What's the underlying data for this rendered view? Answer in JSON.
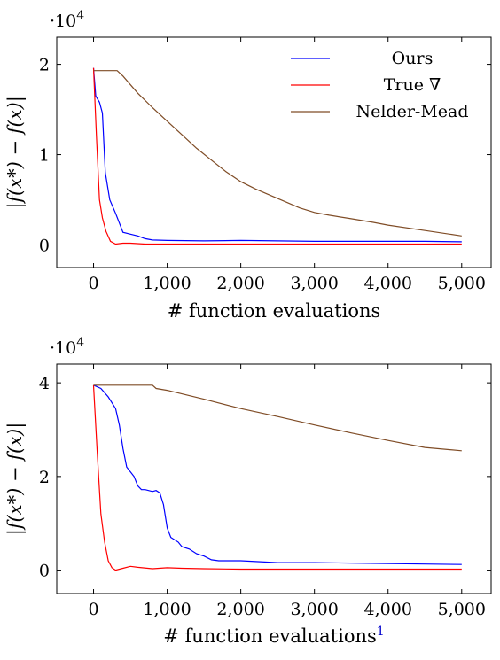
{
  "chart_data": [
    {
      "type": "line",
      "title": "",
      "xlabel": "# function evaluations",
      "ylabel": "|f(x*) − f(x)|",
      "y_multiplier_label": "·10",
      "y_multiplier_exp": "4",
      "xlim": [
        -500,
        5400
      ],
      "ylim": [
        -0.25,
        2.3
      ],
      "x_ticks": [
        0,
        1000,
        2000,
        3000,
        4000,
        5000
      ],
      "x_tick_labels": [
        "0",
        "1,000",
        "2,000",
        "3,000",
        "4,000",
        "5,000"
      ],
      "y_ticks": [
        0,
        1,
        2
      ],
      "y_tick_labels": [
        "0",
        "1",
        "2"
      ],
      "grid": false,
      "legend": "top-right",
      "series": [
        {
          "name": "Ours",
          "color": "#0000ff",
          "points": [
            [
              0,
              1.96
            ],
            [
              30,
              1.65
            ],
            [
              80,
              1.58
            ],
            [
              120,
              1.46
            ],
            [
              160,
              0.8
            ],
            [
              220,
              0.5
            ],
            [
              300,
              0.35
            ],
            [
              400,
              0.14
            ],
            [
              500,
              0.12
            ],
            [
              600,
              0.1
            ],
            [
              700,
              0.07
            ],
            [
              800,
              0.055
            ],
            [
              1000,
              0.05
            ],
            [
              1500,
              0.045
            ],
            [
              2000,
              0.05
            ],
            [
              2500,
              0.045
            ],
            [
              3000,
              0.04
            ],
            [
              3500,
              0.04
            ],
            [
              4000,
              0.04
            ],
            [
              4500,
              0.04
            ],
            [
              5000,
              0.035
            ]
          ]
        },
        {
          "name": "True ∇",
          "color": "#ff0000",
          "points": [
            [
              0,
              1.96
            ],
            [
              40,
              1.2
            ],
            [
              80,
              0.5
            ],
            [
              120,
              0.3
            ],
            [
              170,
              0.15
            ],
            [
              230,
              0.04
            ],
            [
              300,
              0.01
            ],
            [
              400,
              0.02
            ],
            [
              500,
              0.02
            ],
            [
              700,
              0.01
            ],
            [
              1000,
              0.01
            ],
            [
              2000,
              0.01
            ],
            [
              3000,
              0.01
            ],
            [
              4000,
              0.01
            ],
            [
              5000,
              0.01
            ]
          ]
        },
        {
          "name": "Nelder-Mead",
          "color": "#7f4c26",
          "points": [
            [
              0,
              1.93
            ],
            [
              250,
              1.93
            ],
            [
              320,
              1.93
            ],
            [
              400,
              1.87
            ],
            [
              600,
              1.68
            ],
            [
              800,
              1.52
            ],
            [
              1000,
              1.37
            ],
            [
              1200,
              1.22
            ],
            [
              1400,
              1.07
            ],
            [
              1600,
              0.94
            ],
            [
              1800,
              0.81
            ],
            [
              2000,
              0.7
            ],
            [
              2200,
              0.62
            ],
            [
              2400,
              0.55
            ],
            [
              2600,
              0.48
            ],
            [
              2800,
              0.41
            ],
            [
              3000,
              0.36
            ],
            [
              3200,
              0.33
            ],
            [
              3500,
              0.29
            ],
            [
              3800,
              0.25
            ],
            [
              4000,
              0.22
            ],
            [
              4500,
              0.16
            ],
            [
              5000,
              0.1
            ]
          ]
        }
      ]
    },
    {
      "type": "line",
      "title": "",
      "xlabel": "# function evaluations",
      "xlabel_superscript": "1",
      "ylabel": "|f(x*) − f(x)|",
      "y_multiplier_label": "·10",
      "y_multiplier_exp": "4",
      "xlim": [
        -500,
        5400
      ],
      "ylim": [
        -0.5,
        4.4
      ],
      "x_ticks": [
        0,
        1000,
        2000,
        3000,
        4000,
        5000
      ],
      "x_tick_labels": [
        "0",
        "1,000",
        "2,000",
        "3,000",
        "4,000",
        "5,000"
      ],
      "y_ticks": [
        0,
        2,
        4
      ],
      "y_tick_labels": [
        "0",
        "2",
        "4"
      ],
      "grid": false,
      "legend": "none",
      "series": [
        {
          "name": "",
          "color": "#0000ff",
          "points": [
            [
              0,
              3.95
            ],
            [
              100,
              3.88
            ],
            [
              200,
              3.7
            ],
            [
              300,
              3.45
            ],
            [
              350,
              3.1
            ],
            [
              400,
              2.6
            ],
            [
              450,
              2.2
            ],
            [
              500,
              2.1
            ],
            [
              550,
              2.0
            ],
            [
              600,
              1.8
            ],
            [
              650,
              1.72
            ],
            [
              700,
              1.72
            ],
            [
              800,
              1.68
            ],
            [
              850,
              1.7
            ],
            [
              900,
              1.65
            ],
            [
              950,
              1.4
            ],
            [
              1000,
              0.9
            ],
            [
              1050,
              0.7
            ],
            [
              1150,
              0.6
            ],
            [
              1200,
              0.5
            ],
            [
              1300,
              0.45
            ],
            [
              1400,
              0.35
            ],
            [
              1500,
              0.3
            ],
            [
              1600,
              0.22
            ],
            [
              1700,
              0.2
            ],
            [
              1800,
              0.2
            ],
            [
              2000,
              0.2
            ],
            [
              2500,
              0.16
            ],
            [
              3000,
              0.16
            ],
            [
              3500,
              0.15
            ],
            [
              4000,
              0.14
            ],
            [
              4500,
              0.13
            ],
            [
              5000,
              0.12
            ]
          ]
        },
        {
          "name": "",
          "color": "#ff0000",
          "points": [
            [
              0,
              3.95
            ],
            [
              50,
              2.5
            ],
            [
              100,
              1.2
            ],
            [
              150,
              0.6
            ],
            [
              200,
              0.2
            ],
            [
              250,
              0.05
            ],
            [
              300,
              0.0
            ],
            [
              400,
              0.04
            ],
            [
              500,
              0.08
            ],
            [
              600,
              0.06
            ],
            [
              800,
              0.03
            ],
            [
              1000,
              0.05
            ],
            [
              1200,
              0.04
            ],
            [
              1500,
              0.03
            ],
            [
              2000,
              0.02
            ],
            [
              3000,
              0.02
            ],
            [
              4000,
              0.02
            ],
            [
              5000,
              0.02
            ]
          ]
        },
        {
          "name": "",
          "color": "#7f4c26",
          "points": [
            [
              0,
              3.95
            ],
            [
              500,
              3.95
            ],
            [
              800,
              3.95
            ],
            [
              850,
              3.88
            ],
            [
              1000,
              3.84
            ],
            [
              1500,
              3.65
            ],
            [
              2000,
              3.45
            ],
            [
              2500,
              3.28
            ],
            [
              3000,
              3.1
            ],
            [
              3500,
              2.93
            ],
            [
              4000,
              2.77
            ],
            [
              4500,
              2.62
            ],
            [
              5000,
              2.55
            ]
          ]
        }
      ]
    }
  ]
}
